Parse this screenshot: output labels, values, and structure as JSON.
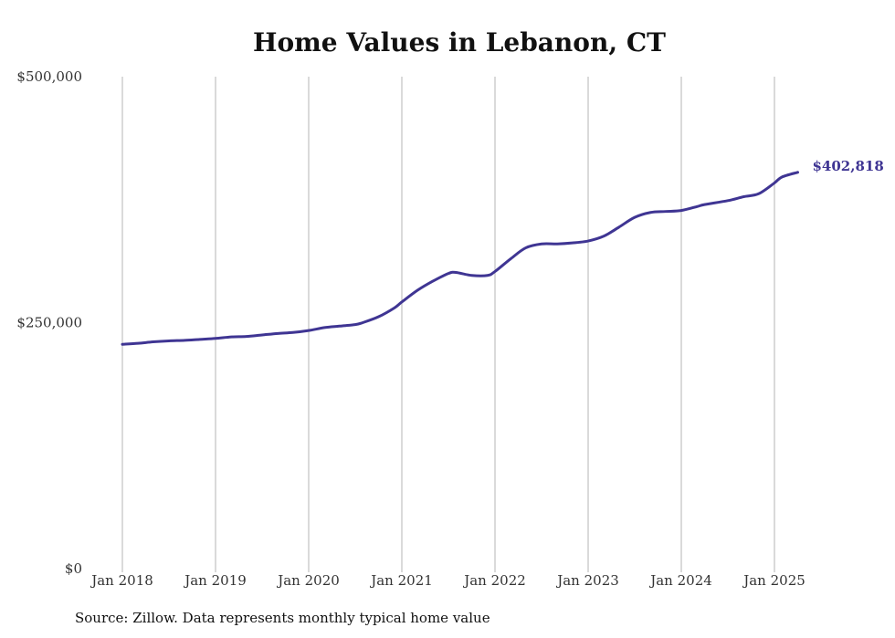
{
  "chart_data": {
    "type": "line",
    "title": "Home Values in Lebanon, CT",
    "xlabel": "",
    "ylabel": "",
    "ylim": [
      0,
      500000
    ],
    "y_ticks": [
      {
        "value": 0,
        "label": "$0"
      },
      {
        "value": 250000,
        "label": "$250,000"
      },
      {
        "value": 500000,
        "label": "$500,000"
      }
    ],
    "x_ticks": [
      {
        "value": 2018.0,
        "label": "Jan 2018"
      },
      {
        "value": 2019.0,
        "label": "Jan 2019"
      },
      {
        "value": 2020.0,
        "label": "Jan 2020"
      },
      {
        "value": 2021.0,
        "label": "Jan 2021"
      },
      {
        "value": 2022.0,
        "label": "Jan 2022"
      },
      {
        "value": 2023.0,
        "label": "Jan 2023"
      },
      {
        "value": 2024.0,
        "label": "Jan 2024"
      },
      {
        "value": 2025.0,
        "label": "Jan 2025"
      }
    ],
    "xlim": [
      2018.0,
      2025.25
    ],
    "grid": "vertical",
    "line_color": "#3f3593",
    "series": [
      {
        "x": [
          2018.0,
          2018.17,
          2018.33,
          2018.5,
          2018.67,
          2018.83,
          2019.0,
          2019.17,
          2019.33,
          2019.5,
          2019.67,
          2019.83,
          2020.0,
          2020.17,
          2020.33,
          2020.5,
          2020.58,
          2020.75,
          2020.92,
          2021.0,
          2021.17,
          2021.33,
          2021.5,
          2021.58,
          2021.75,
          2021.92,
          2022.0,
          2022.17,
          2022.33,
          2022.5,
          2022.67,
          2022.83,
          2023.0,
          2023.17,
          2023.33,
          2023.5,
          2023.67,
          2023.83,
          2024.0,
          2024.17,
          2024.25,
          2024.5,
          2024.67,
          2024.83,
          2025.0,
          2025.08,
          2025.25
        ],
        "y": [
          228000,
          229000,
          230500,
          231500,
          232000,
          233000,
          234000,
          235500,
          236000,
          237500,
          239000,
          240000,
          242000,
          245000,
          246500,
          248000,
          250000,
          256000,
          265000,
          271000,
          283000,
          292000,
          300000,
          301000,
          298000,
          298000,
          302000,
          315000,
          326000,
          330000,
          330000,
          331000,
          333000,
          338000,
          347000,
          357000,
          362000,
          363000,
          364000,
          368000,
          370000,
          374000,
          378000,
          381000,
          392000,
          398000,
          402818
        ]
      }
    ],
    "annotations": [
      {
        "label": "$402,818",
        "x": 2025.25,
        "y": 402818
      }
    ]
  },
  "footer": {
    "source": "Source: Zillow. Data represents monthly typical home value"
  }
}
